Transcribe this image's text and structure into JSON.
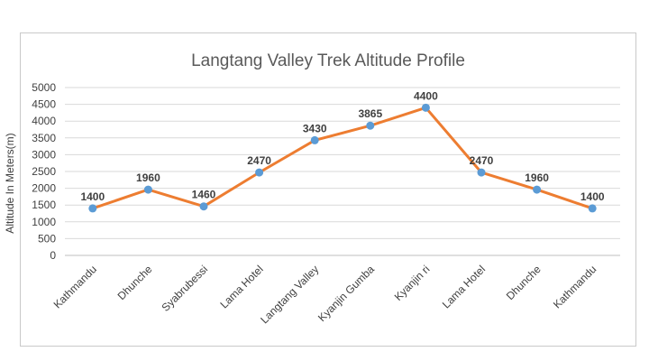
{
  "chart_data": {
    "type": "line",
    "title": "Langtang Valley Trek Altitude Profile",
    "xlabel": "",
    "ylabel": "Altitude In Meters(m)",
    "ylim": [
      0,
      5000
    ],
    "ytick_step": 500,
    "grid": true,
    "categories": [
      "Kathmandu",
      "Dhunche",
      "Syabrubessi",
      "Lama Hotel",
      "Langtang Valley",
      "Kyanjin Gumba",
      "Kyanjin ri",
      "Lama Hotel",
      "Dhunche",
      "Kathmandu"
    ],
    "series": [
      {
        "name": "Altitude",
        "values": [
          1400,
          1960,
          1460,
          2470,
          3430,
          3865,
          4400,
          2470,
          1960,
          1400
        ],
        "line_color": "#ED7D31",
        "marker_color": "#5B9BD5"
      }
    ],
    "data_labels": [
      "1400",
      "1960",
      "1460",
      "2470",
      "3430",
      "3865",
      "4400",
      "2470",
      "1960",
      "1400"
    ]
  }
}
